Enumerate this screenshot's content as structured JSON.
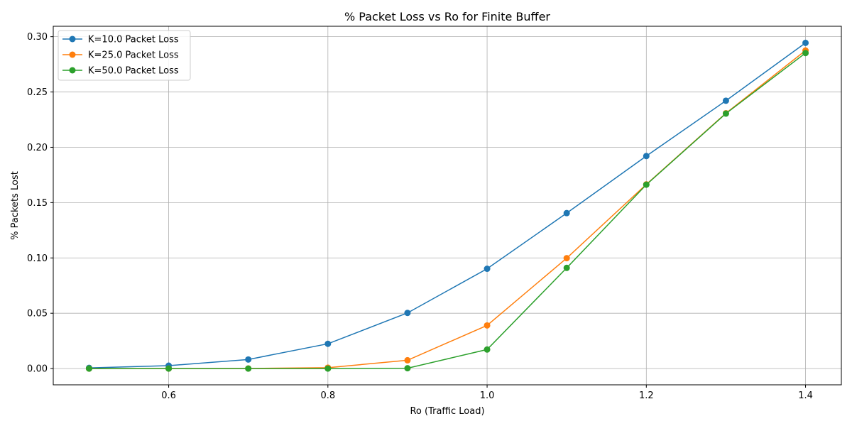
{
  "chart_data": {
    "type": "line",
    "title": "% Packet Loss vs Ro for Finite Buffer",
    "xlabel": "Ro (Traffic Load)",
    "ylabel": "% Packets Lost",
    "xlim": [
      0.455,
      1.445
    ],
    "ylim": [
      -0.0147,
      0.3094
    ],
    "xticks": [
      0.6,
      0.8,
      1.0,
      1.2,
      1.4
    ],
    "xtick_labels": [
      "0.6",
      "0.8",
      "1.0",
      "1.2",
      "1.4"
    ],
    "yticks": [
      0.0,
      0.05,
      0.1,
      0.15,
      0.2,
      0.25,
      0.3
    ],
    "ytick_labels": [
      "0.00",
      "0.05",
      "0.10",
      "0.15",
      "0.20",
      "0.25",
      "0.30"
    ],
    "grid": true,
    "legend_position": "upper-left",
    "marker": "circle",
    "x": [
      0.5,
      0.6,
      0.7,
      0.8,
      0.9,
      1.0,
      1.1,
      1.2,
      1.3,
      1.4
    ],
    "series": [
      {
        "name": "K=10.0 Packet Loss",
        "color": "#1f77b4",
        "values": [
          0.0006,
          0.0026,
          0.0082,
          0.0224,
          0.0503,
          0.0902,
          0.1405,
          0.1921,
          0.2421,
          0.2944
        ]
      },
      {
        "name": "K=25.0 Packet Loss",
        "color": "#ff7f0e",
        "values": [
          0.0,
          0.0,
          0.0001,
          0.0008,
          0.0075,
          0.039,
          0.0998,
          0.1665,
          0.2308,
          0.2875
        ]
      },
      {
        "name": "K=50.0 Packet Loss",
        "color": "#2ca02c",
        "values": [
          0.0,
          0.0,
          0.0,
          0.0,
          0.0003,
          0.0172,
          0.091,
          0.1662,
          0.2305,
          0.2852
        ]
      }
    ]
  }
}
